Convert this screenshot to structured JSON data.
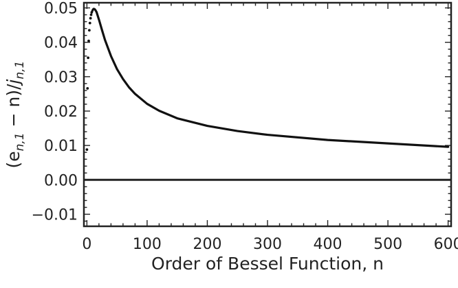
{
  "chart_data": {
    "type": "line",
    "title": "",
    "xlabel": "Order of Bessel Function, n",
    "ylabel": "(e_{n,1} − n)/j_{n,1}",
    "ylabel_parts": {
      "open": "(e",
      "sub1": "n,1",
      "middle": " − n)/",
      "j": "j",
      "sub2": "n,1"
    },
    "xlim": [
      -5,
      605
    ],
    "ylim": [
      -0.0135,
      0.0515
    ],
    "x_ticks": [
      0,
      100,
      200,
      300,
      400,
      500,
      600
    ],
    "x_tick_labels": [
      "0",
      "100",
      "200",
      "300",
      "400",
      "500",
      "600"
    ],
    "y_ticks": [
      -0.01,
      0.0,
      0.01,
      0.02,
      0.03,
      0.04,
      0.05
    ],
    "y_tick_labels": [
      "−0.01",
      "0.00",
      "0.01",
      "0.02",
      "0.03",
      "0.04",
      "0.05"
    ],
    "grid": false,
    "frame": true,
    "reference_line_y": 0.0,
    "series": [
      {
        "style": "dotted",
        "x": [
          0,
          1,
          2,
          3,
          4,
          5,
          6,
          7,
          8
        ],
        "y": [
          0.0088,
          0.0266,
          0.0355,
          0.0404,
          0.0435,
          0.0456,
          0.047,
          0.048,
          0.0487
        ]
      },
      {
        "style": "solid",
        "x": [
          9,
          10,
          11,
          12,
          13,
          14,
          16,
          20,
          25,
          30,
          40,
          50,
          60,
          70,
          80,
          100,
          120,
          150,
          200,
          250,
          300,
          400,
          500,
          600
        ],
        "y": [
          0.0491,
          0.0495,
          0.0497,
          0.0497,
          0.0496,
          0.0494,
          0.0488,
          0.0466,
          0.0436,
          0.0407,
          0.036,
          0.0322,
          0.0293,
          0.0269,
          0.025,
          0.0221,
          0.0201,
          0.0179,
          0.0157,
          0.0142,
          0.0131,
          0.0116,
          0.0106,
          0.0096
        ]
      }
    ]
  }
}
